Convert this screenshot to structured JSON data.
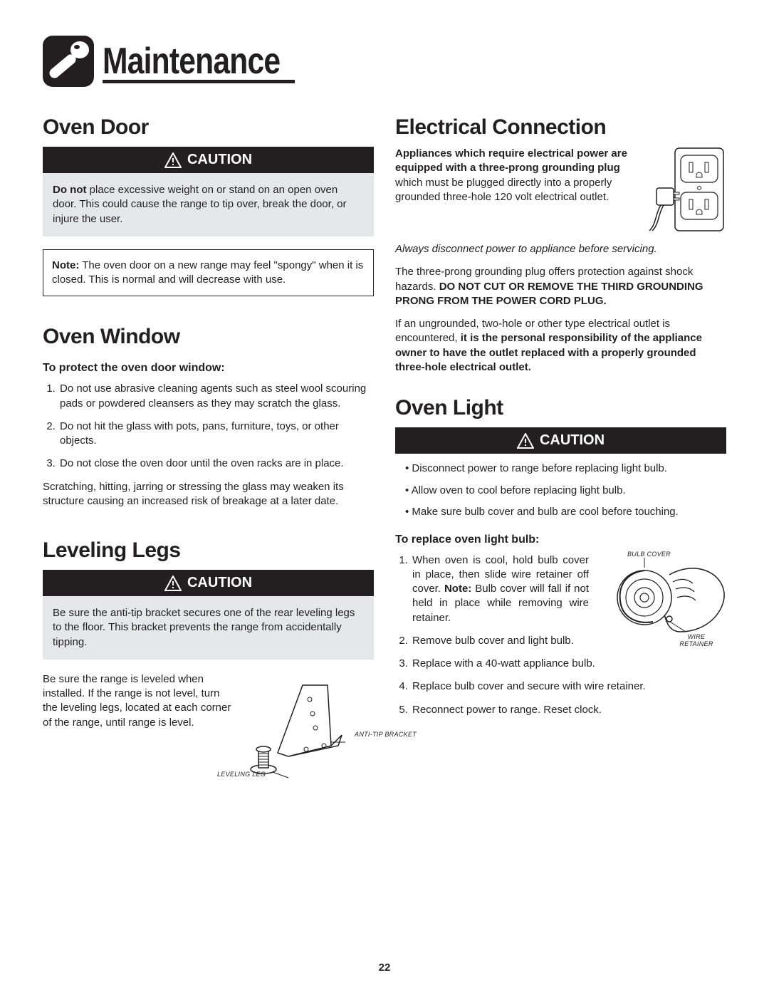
{
  "header": {
    "title": "Maintenance"
  },
  "pageNumber": "22",
  "caution_label": "CAUTION",
  "left": {
    "ovenDoor": {
      "heading": "Oven Door",
      "caution_html": "<b>Do not</b> place excessive weight on or stand on an open oven door. This could cause the range to tip over, break the door, or injure the user.",
      "note_html": "<b>Note:</b> The oven door on a new range may feel \"spongy\" when it is closed. This is normal and will decrease with use."
    },
    "ovenWindow": {
      "heading": "Oven Window",
      "subhead": "To protect the oven door window:",
      "items": [
        "Do not use abrasive cleaning agents such as steel wool scouring pads or powdered cleansers as they may scratch the glass.",
        "Do not hit the glass with pots, pans, furniture, toys, or other objects.",
        "Do not close the oven door until the oven racks are in place."
      ],
      "footer": "Scratching, hitting, jarring or stressing the glass may weaken its structure causing an increased risk of breakage at a later date."
    },
    "levelingLegs": {
      "heading": "Leveling Legs",
      "caution": "Be sure the anti-tip bracket secures one of the rear leveling legs to the floor. This bracket prevents the range from accidentally tipping.",
      "body": "Be sure the range is leveled when installed.  If the range is not level, turn the leveling legs, located at each corner of the range, until range is level.",
      "label_bracket": "ANTI-TIP BRACKET",
      "label_leg": "LEVELING LEG"
    }
  },
  "right": {
    "electrical": {
      "heading": "Electrical Connection",
      "intro_html": "<b>Appliances which require electrical power are equipped with a three-prong grounding plug</b> which must be plugged directly into a properly grounded three-hole 120 volt electrical outlet.",
      "disconnect": "Always disconnect power to appliance before servicing.",
      "para2_html": "The three-prong grounding plug offers protection against shock hazards. <b>DO NOT CUT OR REMOVE THE THIRD GROUNDING PRONG FROM THE POWER CORD PLUG.</b>",
      "para3_html": "If an ungrounded, two-hole or other type electrical outlet is encountered, <b>it is the personal responsibility of the appliance owner to have the outlet replaced with a properly grounded three-hole electrical outlet.</b>"
    },
    "ovenLight": {
      "heading": "Oven Light",
      "bullets": [
        "Disconnect power to range before replacing light bulb.",
        "Allow oven to cool before replacing light bulb.",
        "Make sure bulb cover and bulb are cool before touching."
      ],
      "subhead": "To replace oven light bulb:",
      "steps": [
        "When oven is cool, hold bulb cover in place, then slide wire retainer off cover. <b>Note:</b> Bulb cover will fall if not held in place while removing wire retainer.",
        "Remove bulb cover and light bulb.",
        "Replace with a 40-watt appliance bulb.",
        "Replace bulb cover and secure with wire retainer.",
        "Reconnect power to range. Reset clock."
      ],
      "label_cover": "BULB COVER",
      "label_retainer": "WIRE RETAINER"
    }
  }
}
